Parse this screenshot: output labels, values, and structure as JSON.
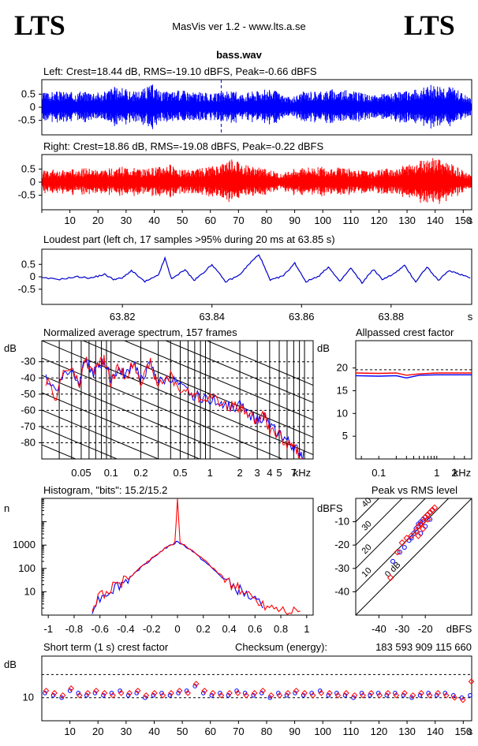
{
  "header": {
    "logo_left": "LTS",
    "logo_right": "LTS",
    "app_title": "MasVis ver 1.2 - www.lts.a.se",
    "file_name": "bass.wav"
  },
  "colors": {
    "left": "#0000ff",
    "right": "#ff0000",
    "avg": "#0000cc"
  },
  "chart_data": [
    {
      "type": "line",
      "id": "left-waveform",
      "title": "Left: Crest=18.44 dB, RMS=-19.10 dBFS, Peak=-0.66 dBFS",
      "ytick_labels": [
        "0.5",
        "0",
        "-0.5"
      ],
      "ylim": [
        -1,
        1
      ],
      "xlim": [
        0,
        153
      ],
      "series": [
        {
          "values": [
            0.55,
            0.6,
            0.62,
            0.58,
            0.6,
            0.65,
            0.55,
            0.8,
            0.75,
            0.6,
            0.7,
            0.9,
            0.6,
            0.62,
            0.68,
            0.6,
            0.58,
            0.5,
            0.58,
            0.62,
            0.55,
            0.62,
            0.66,
            0.7,
            0.5,
            0.35,
            0.6,
            0.65,
            0.62,
            0.7,
            0.68,
            0.62,
            0.55,
            0.45,
            0.5,
            0.55,
            0.6,
            0.65,
            0.75,
            0.85,
            0.9,
            0.8,
            0.6,
            0.35
          ]
        }
      ],
      "marker_x": 63.85
    },
    {
      "type": "line",
      "id": "right-waveform",
      "title": "Right: Crest=18.86 dB, RMS=-19.08 dBFS, Peak=-0.22 dBFS",
      "ytick_labels": [
        "0.5",
        "0",
        "-0.5"
      ],
      "xtick_labels": [
        "10",
        "20",
        "30",
        "40",
        "50",
        "60",
        "70",
        "80",
        "90",
        "100",
        "110",
        "120",
        "130",
        "140",
        "150",
        "s"
      ],
      "ylim": [
        -1,
        1
      ],
      "xlim": [
        0,
        153
      ],
      "series": [
        {
          "values": [
            0.45,
            0.5,
            0.45,
            0.5,
            0.55,
            0.5,
            0.48,
            0.55,
            0.6,
            0.55,
            0.5,
            0.55,
            0.6,
            0.7,
            0.5,
            0.45,
            0.55,
            0.6,
            0.7,
            0.95,
            0.7,
            0.6,
            0.55,
            0.45,
            0.3,
            0.5,
            0.6,
            0.55,
            0.6,
            0.55,
            0.6,
            0.5,
            0.45,
            0.4,
            0.5,
            0.55,
            0.6,
            0.7,
            0.85,
            0.95,
            0.9,
            0.7,
            0.5,
            0.3
          ]
        }
      ]
    },
    {
      "type": "line",
      "id": "loudest-part",
      "title": "Loudest part (left  ch, 17 samples >95% during 20 ms at 63.85 s)",
      "ytick_labels": [
        "0.5",
        "0",
        "-0.5"
      ],
      "xtick_labels": [
        "63.82",
        "63.84",
        "63.86",
        "63.88",
        "s"
      ],
      "xticks": [
        63.82,
        63.84,
        63.86,
        63.88
      ],
      "xlim": [
        63.802,
        63.898
      ],
      "ylim": [
        -1,
        1
      ],
      "series": [
        {
          "x": [
            63.802,
            63.806,
            63.81,
            63.813,
            63.816,
            63.818,
            63.82,
            63.822,
            63.825,
            63.828,
            63.8295,
            63.831,
            63.834,
            63.836,
            63.838,
            63.84,
            63.843,
            63.846,
            63.8485,
            63.8505,
            63.853,
            63.856,
            63.8585,
            63.861,
            63.864,
            63.866,
            63.8685,
            63.871,
            63.8735,
            63.876,
            63.878,
            63.8805,
            63.883,
            63.8855,
            63.888,
            63.8905,
            63.893,
            63.8955,
            63.898
          ],
          "y": [
            -0.05,
            -0.1,
            0.0,
            -0.05,
            0.1,
            -0.1,
            -0.05,
            0.25,
            -0.2,
            0.05,
            0.75,
            -0.1,
            0.3,
            -0.15,
            0.15,
            0.5,
            -0.2,
            0.05,
            0.55,
            0.9,
            -0.15,
            0.05,
            0.55,
            -0.2,
            0.05,
            0.4,
            -0.2,
            0.35,
            -0.25,
            0.3,
            -0.1,
            0.1,
            0.45,
            -0.2,
            0.4,
            -0.15,
            0.25,
            0.1,
            -0.05
          ]
        }
      ]
    },
    {
      "type": "line",
      "id": "avg-spectrum",
      "title": "Normalized average spectrum, 157 frames",
      "ylabel": "dB",
      "xlabel": "kHz",
      "ytick_labels": [
        "-30",
        "-40",
        "-50",
        "-60",
        "-70",
        "-80"
      ],
      "yticks": [
        -30,
        -40,
        -50,
        -60,
        -70,
        -80
      ],
      "xtick_labels": [
        "0.05",
        "0.1",
        "0.2",
        "0.5",
        "1",
        "2",
        "3",
        "4",
        "5",
        "7",
        "kHz"
      ],
      "xticks": [
        0.05,
        0.1,
        0.2,
        0.5,
        1,
        2,
        3,
        4,
        5,
        7
      ],
      "xlim": [
        0.02,
        11
      ],
      "ylim": [
        -90,
        -17
      ],
      "x_scale": "log",
      "series": [
        {
          "name": "left",
          "x": [
            0.022,
            0.028,
            0.033,
            0.04,
            0.048,
            0.055,
            0.065,
            0.075,
            0.085,
            0.1,
            0.12,
            0.14,
            0.17,
            0.2,
            0.25,
            0.3,
            0.4,
            0.5,
            0.65,
            0.8,
            1,
            1.3,
            1.6,
            2,
            2.5,
            3,
            3.5,
            4,
            5,
            6,
            7,
            8,
            9
          ],
          "y": [
            -40,
            -48,
            -38,
            -35,
            -42,
            -27,
            -38,
            -33,
            -30,
            -40,
            -35,
            -39,
            -30,
            -41,
            -32,
            -43,
            -40,
            -46,
            -50,
            -52,
            -53,
            -55,
            -58,
            -57,
            -62,
            -66,
            -64,
            -70,
            -74,
            -79,
            -83,
            -86,
            -88
          ]
        },
        {
          "name": "right",
          "x": [
            0.022,
            0.028,
            0.033,
            0.04,
            0.048,
            0.055,
            0.065,
            0.075,
            0.085,
            0.1,
            0.12,
            0.14,
            0.17,
            0.2,
            0.25,
            0.3,
            0.4,
            0.5,
            0.65,
            0.8,
            1,
            1.3,
            1.6,
            2,
            2.5,
            3,
            3.5,
            4,
            5,
            6,
            7,
            8,
            9
          ],
          "y": [
            -42,
            -52,
            -36,
            -34,
            -45,
            -28,
            -37,
            -31,
            -29,
            -43,
            -33,
            -40,
            -30,
            -42,
            -31,
            -45,
            -38,
            -48,
            -49,
            -53,
            -51,
            -56,
            -57,
            -59,
            -61,
            -68,
            -63,
            -72,
            -75,
            -81,
            -82,
            -88,
            -90
          ]
        }
      ]
    },
    {
      "type": "line",
      "id": "allpassed-crest",
      "title": "Allpassed crest factor",
      "ylabel": "dB",
      "xlabel": "kHz",
      "ytick_labels": [
        "20",
        "15",
        "10",
        "5"
      ],
      "yticks": [
        20,
        15,
        10,
        5
      ],
      "xtick_labels": [
        "0.1",
        "1",
        "2",
        "kHz"
      ],
      "xticks": [
        0.1,
        1,
        2
      ],
      "xlim": [
        0.04,
        4
      ],
      "ylim": [
        0,
        26
      ],
      "x_scale": "log",
      "series": [
        {
          "name": "left",
          "x": [
            0.04,
            0.1,
            0.2,
            0.3,
            0.5,
            1,
            2,
            4
          ],
          "y": [
            18.3,
            18.2,
            18.3,
            17.8,
            18.4,
            18.5,
            18.5,
            18.5
          ]
        },
        {
          "name": "right",
          "x": [
            0.04,
            0.1,
            0.2,
            0.3,
            0.5,
            1,
            2,
            4
          ],
          "y": [
            18.9,
            18.8,
            18.9,
            18.4,
            18.7,
            18.9,
            18.9,
            18.9
          ]
        }
      ]
    },
    {
      "type": "line",
      "id": "histogram",
      "title": "Histogram, \"bits\": 15.2/15.2",
      "ylabel": "n",
      "ytick_labels": [
        "1000",
        "100",
        "10"
      ],
      "yticks": [
        1000,
        100,
        10
      ],
      "xtick_labels": [
        "-1",
        "-0.8",
        "-0.6",
        "-0.4",
        "-0.2",
        "0",
        "0.2",
        "0.4",
        "0.6",
        "0.8",
        "1"
      ],
      "xticks": [
        -1,
        -0.8,
        -0.6,
        -0.4,
        -0.2,
        0,
        0.2,
        0.4,
        0.6,
        0.8,
        1
      ],
      "xlim": [
        -1.05,
        1.05
      ],
      "y_scale": "log",
      "ylim": [
        1,
        100000
      ],
      "series": [
        {
          "name": "left",
          "x": [
            -0.66,
            -0.6,
            -0.5,
            -0.4,
            -0.3,
            -0.2,
            -0.1,
            -0.02,
            0,
            0.02,
            0.1,
            0.2,
            0.3,
            0.4,
            0.5,
            0.6,
            0.66
          ],
          "y": [
            2,
            6,
            14,
            30,
            90,
            260,
            700,
            1200,
            1500,
            1200,
            650,
            220,
            70,
            22,
            10,
            4,
            2
          ]
        },
        {
          "name": "right",
          "x": [
            -0.66,
            -0.6,
            -0.5,
            -0.4,
            -0.3,
            -0.2,
            -0.1,
            -0.02,
            0,
            0.02,
            0.1,
            0.2,
            0.3,
            0.4,
            0.5,
            0.6,
            0.66,
            0.8,
            0.95
          ],
          "y": [
            2,
            7,
            15,
            32,
            95,
            270,
            720,
            1250,
            90000,
            1250,
            680,
            240,
            80,
            25,
            11,
            5,
            3,
            2,
            1.5
          ]
        }
      ]
    },
    {
      "type": "scatter",
      "id": "peak-vs-rms",
      "title": "Peak vs RMS level",
      "ylabel": "dBFS",
      "xlabel": "dBFS",
      "ytick_labels": [
        "-10",
        "-20",
        "-30",
        "-40"
      ],
      "yticks": [
        -10,
        -20,
        -30,
        -40
      ],
      "xtick_labels": [
        "-40",
        "-30",
        "-20",
        "dBFS"
      ],
      "xticks": [
        -40,
        -30,
        -20
      ],
      "diag_labels": [
        "40",
        "30",
        "20",
        "10",
        "0 dB"
      ],
      "xlim": [
        -50,
        0
      ],
      "ylim": [
        -50,
        0
      ],
      "series": [
        {
          "name": "left",
          "x": [
            -34,
            -31,
            -29,
            -27,
            -26,
            -25,
            -24,
            -23,
            -22,
            -21,
            -20,
            -19,
            -18,
            -17,
            -20,
            -22,
            -18
          ],
          "y": [
            -27,
            -23,
            -21,
            -18,
            -17,
            -15,
            -13,
            -11,
            -10,
            -9,
            -8,
            -7,
            -6,
            -5,
            -12,
            -15,
            -9
          ]
        },
        {
          "name": "right",
          "x": [
            -35,
            -32,
            -30,
            -28,
            -26,
            -24,
            -23,
            -22,
            -21,
            -20,
            -19,
            -18,
            -17,
            -16,
            -21,
            -23,
            -19
          ],
          "y": [
            -34,
            -23,
            -19,
            -17,
            -16,
            -14,
            -12,
            -11,
            -10,
            -8,
            -7,
            -6,
            -5,
            -4,
            -13,
            -16,
            -9
          ]
        }
      ]
    },
    {
      "type": "scatter",
      "id": "short-term-crest",
      "title": "Short term (1 s) crest factor",
      "ylabel": "dB",
      "ytick_labels": [
        "10"
      ],
      "yticks": [
        10
      ],
      "xtick_labels": [
        "10",
        "20",
        "30",
        "40",
        "50",
        "60",
        "70",
        "80",
        "90",
        "100",
        "110",
        "120",
        "130",
        "140",
        "150",
        "s"
      ],
      "xlim": [
        0,
        153
      ],
      "ylim": [
        0,
        28
      ],
      "series": [
        {
          "name": "left",
          "values": [
            12,
            11,
            10,
            13,
            12,
            11,
            12,
            11,
            12,
            13,
            11,
            12,
            10,
            11,
            12,
            11,
            12,
            13,
            15,
            12,
            11,
            12,
            11,
            13,
            12,
            11,
            12,
            10,
            12,
            11,
            12,
            11,
            12,
            13,
            11,
            12,
            11,
            10,
            12,
            11,
            12,
            11,
            12,
            11,
            10,
            11,
            12,
            11,
            12,
            11,
            10,
            11
          ]
        },
        {
          "name": "right",
          "values": [
            13,
            12,
            11,
            14,
            11,
            12,
            13,
            12,
            11,
            12,
            12,
            13,
            11,
            12,
            11,
            12,
            13,
            12,
            16,
            13,
            12,
            11,
            12,
            12,
            11,
            12,
            13,
            11,
            11,
            12,
            13,
            12,
            11,
            12,
            12,
            11,
            12,
            11,
            11,
            12,
            11,
            12,
            11,
            12,
            11,
            12,
            11,
            12,
            11,
            10,
            9,
            17
          ]
        }
      ]
    }
  ],
  "checksum": {
    "label": "Checksum (energy):",
    "value": "183 593 909 115 660"
  }
}
